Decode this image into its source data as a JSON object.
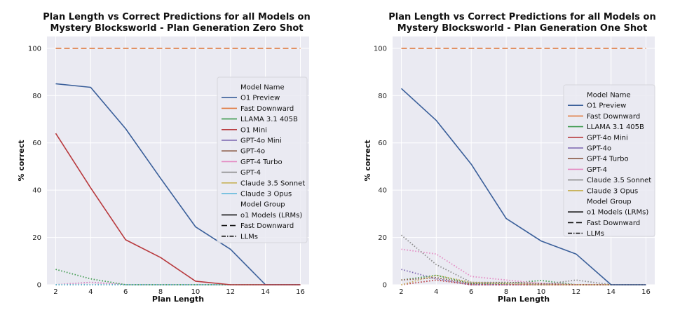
{
  "chart_data": [
    {
      "type": "line",
      "title_lines": [
        "Plan Length vs Correct Predictions for all Models on",
        "Mystery Blocksworld - Plan Generation Zero Shot"
      ],
      "xlabel": "Plan Length",
      "ylabel": "% correct",
      "x": [
        2,
        4,
        6,
        8,
        10,
        12,
        14,
        16
      ],
      "xlim": [
        1.5,
        16.5
      ],
      "ylim": [
        0,
        105
      ],
      "yticks": [
        0,
        20,
        40,
        60,
        80,
        100
      ],
      "legend_position": "center-right",
      "legend_title": "Model Name",
      "legend_style_title": "Model Group",
      "series": [
        {
          "name": "O1 Preview",
          "color": "#3a5f9a",
          "style": "solid",
          "values": [
            85,
            83.5,
            66,
            45,
            24.5,
            15,
            0,
            0
          ]
        },
        {
          "name": "Fast Downward",
          "color": "#e07a3f",
          "style": "dashed",
          "values": [
            100,
            100,
            100,
            100,
            100,
            100,
            100,
            100
          ]
        },
        {
          "name": "LLAMA 3.1 405B",
          "color": "#3f9a4f",
          "style": "dotted",
          "values": [
            6.5,
            2.5,
            0,
            0,
            0,
            0,
            0,
            0
          ]
        },
        {
          "name": "O1 Mini",
          "color": "#b8393d",
          "style": "solid",
          "values": [
            64,
            41,
            19,
            11.5,
            1.5,
            0,
            0,
            0
          ]
        },
        {
          "name": "GPT-4o Mini",
          "color": "#7b64b0",
          "style": "dotted",
          "values": [
            0,
            1,
            0,
            0,
            0,
            0,
            0,
            0
          ]
        },
        {
          "name": "GPT-4o",
          "color": "#8a5a45",
          "style": "dotted",
          "values": [
            0,
            0,
            0,
            0,
            0,
            0,
            0,
            0
          ]
        },
        {
          "name": "GPT-4 Turbo",
          "color": "#e48ac3",
          "style": "dotted",
          "values": [
            0,
            1,
            0,
            0,
            0,
            0,
            0,
            0
          ]
        },
        {
          "name": "GPT-4",
          "color": "#8c8c8c",
          "style": "dotted",
          "values": [
            0,
            0,
            0,
            0,
            0,
            0,
            0,
            0
          ]
        },
        {
          "name": "Claude 3.5 Sonnet",
          "color": "#c8b25a",
          "style": "dotted",
          "values": [
            0,
            0,
            0,
            0,
            0,
            0,
            0,
            0
          ]
        },
        {
          "name": "Claude 3 Opus",
          "color": "#56b4d9",
          "style": "dotted",
          "values": [
            0,
            0,
            0,
            0,
            0,
            0,
            0,
            0
          ]
        }
      ],
      "style_legend": [
        {
          "name": "o1 Models (LRMs)",
          "style": "solid"
        },
        {
          "name": "Fast Downward",
          "style": "dashed"
        },
        {
          "name": "LLMs",
          "style": "dashdot"
        }
      ]
    },
    {
      "type": "line",
      "title_lines": [
        "Plan Length vs Correct Predictions for all Models on",
        "Mystery Blocksworld - Plan Generation One Shot"
      ],
      "xlabel": "Plan Length",
      "ylabel": "% correct",
      "x": [
        2,
        4,
        6,
        8,
        10,
        12,
        14,
        16
      ],
      "xlim": [
        1.5,
        16.5
      ],
      "ylim": [
        0,
        105
      ],
      "yticks": [
        0,
        20,
        40,
        60,
        80,
        100
      ],
      "legend_position": "center-right",
      "legend_title": "Model Name",
      "legend_style_title": "Model Group",
      "series": [
        {
          "name": "O1 Preview",
          "color": "#3a5f9a",
          "style": "solid",
          "values": [
            83,
            69.5,
            51,
            28,
            18.5,
            13,
            0,
            0
          ]
        },
        {
          "name": "Fast Downward",
          "color": "#e07a3f",
          "style": "dashed",
          "values": [
            100,
            100,
            100,
            100,
            100,
            100,
            100,
            100
          ]
        },
        {
          "name": "LLAMA 3.1 405B",
          "color": "#3f9a4f",
          "style": "dotted",
          "values": [
            2,
            4,
            0.5,
            0.5,
            1.8,
            0,
            0,
            0
          ]
        },
        {
          "name": "GPT-4o Mini",
          "color": "#b8393d",
          "style": "dotted",
          "values": [
            0,
            2,
            0,
            0,
            0,
            0,
            0,
            0
          ]
        },
        {
          "name": "GPT-4o",
          "color": "#7b64b0",
          "style": "dotted",
          "values": [
            6.5,
            2.5,
            0,
            0,
            0,
            0,
            0,
            0
          ]
        },
        {
          "name": "GPT-4 Turbo",
          "color": "#8a5a45",
          "style": "dotted",
          "values": [
            2,
            3,
            0.5,
            1,
            0.5,
            0,
            0,
            0
          ]
        },
        {
          "name": "GPT-4",
          "color": "#e48ac3",
          "style": "dotted",
          "values": [
            15,
            13,
            3.5,
            2,
            0.5,
            0,
            0,
            0
          ]
        },
        {
          "name": "Claude 3.5 Sonnet",
          "color": "#8c8c8c",
          "style": "dotted",
          "values": [
            21,
            8.5,
            1,
            1,
            0,
            2,
            0,
            0
          ]
        },
        {
          "name": "Claude 3 Opus",
          "color": "#c8b25a",
          "style": "dotted",
          "values": [
            0,
            4,
            1,
            0.5,
            0,
            0,
            0,
            0
          ]
        }
      ],
      "style_legend": [
        {
          "name": "o1 Models (LRMs)",
          "style": "solid"
        },
        {
          "name": "Fast Downward",
          "style": "dashed"
        },
        {
          "name": "LLMs",
          "style": "dashdot"
        }
      ]
    }
  ]
}
